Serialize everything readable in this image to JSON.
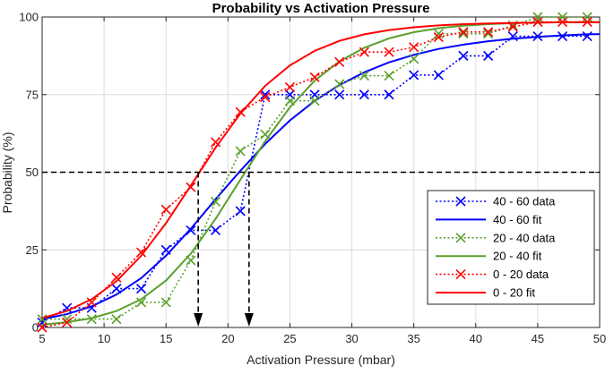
{
  "chart_data": {
    "type": "line",
    "title": "Probability vs Activation Pressure",
    "xlabel": "Activation Pressure (mbar)",
    "ylabel": "Probability (%)",
    "xlim": [
      5,
      50
    ],
    "ylim": [
      0,
      100
    ],
    "xticks": [
      5,
      10,
      15,
      20,
      25,
      30,
      35,
      40,
      45,
      50
    ],
    "yticks": [
      0,
      25,
      50,
      75,
      100
    ],
    "grid": true,
    "legend_position": "bottom-right",
    "reference_line": {
      "y": 50
    },
    "arrows": [
      {
        "x": 17.6,
        "from_y": 50,
        "to_y": 0
      },
      {
        "x": 21.7,
        "from_y": 50,
        "to_y": 0
      }
    ],
    "series": [
      {
        "name": "40 - 60 data",
        "style": "dotted-marker",
        "color": "#0000ff",
        "x": [
          5,
          7,
          9,
          11,
          13,
          15,
          17,
          19,
          21,
          23,
          25,
          27,
          29,
          31,
          33,
          35,
          37,
          39,
          41,
          43,
          45,
          47,
          49
        ],
        "y": [
          1.6,
          6.3,
          6.3,
          12.5,
          12.5,
          25,
          31.3,
          31.3,
          37.5,
          75,
          75,
          75,
          75,
          75,
          75,
          81.3,
          81.3,
          87.5,
          87.5,
          93.8,
          93.8,
          93.8,
          93.8
        ]
      },
      {
        "name": "40 - 60 fit",
        "style": "solid",
        "color": "#0000ff",
        "x": [
          5,
          7,
          9,
          11,
          13,
          15,
          17,
          19,
          21,
          23,
          25,
          27,
          29,
          31,
          33,
          35,
          37,
          39,
          41,
          43,
          45,
          47,
          49,
          50
        ],
        "y": [
          2.7,
          4.3,
          6.8,
          10.6,
          15.9,
          23.1,
          31.8,
          41.3,
          50.5,
          59.1,
          66.7,
          73,
          78.1,
          82.2,
          85.4,
          87.8,
          89.7,
          91.1,
          92.2,
          93,
          93.6,
          94.1,
          94.4,
          94.5
        ]
      },
      {
        "name": "20 - 40 data",
        "style": "dotted-marker",
        "color": "#5aa02c",
        "x": [
          5,
          7,
          9,
          11,
          13,
          15,
          17,
          19,
          21,
          23,
          25,
          27,
          29,
          31,
          33,
          35,
          37,
          39,
          41,
          43,
          45,
          47,
          49
        ],
        "y": [
          2.7,
          2.7,
          2.7,
          2.7,
          8.1,
          8.1,
          21.6,
          40.5,
          56.8,
          62.2,
          73,
          73,
          78.4,
          81.1,
          81.1,
          86.5,
          94.6,
          94.6,
          94.6,
          97.3,
          100,
          100,
          100
        ]
      },
      {
        "name": "20 - 40 fit",
        "style": "solid",
        "color": "#5aa02c",
        "x": [
          5,
          7,
          9,
          11,
          13,
          15,
          17,
          19,
          21,
          23,
          25,
          27,
          29,
          31,
          33,
          35,
          37,
          39,
          41,
          43,
          45,
          47,
          49,
          50
        ],
        "y": [
          0.9,
          1.7,
          3,
          5.3,
          9.1,
          15.1,
          23.8,
          35,
          47.6,
          60,
          70.9,
          79.5,
          85.7,
          90.1,
          93.1,
          95.1,
          96.4,
          97.2,
          97.7,
          98,
          98.2,
          98.3,
          98.4,
          98.4
        ]
      },
      {
        "name": "0 - 20 data",
        "style": "dotted-marker",
        "color": "#ff0000",
        "x": [
          5,
          7,
          9,
          11,
          13,
          15,
          17,
          19,
          21,
          23,
          25,
          27,
          29,
          31,
          33,
          35,
          37,
          39,
          41,
          43,
          45,
          47,
          49
        ],
        "y": [
          0,
          1.6,
          8.1,
          16.1,
          24.2,
          38,
          45.2,
          59.7,
          69.4,
          74.2,
          77.4,
          80.6,
          85.5,
          88.7,
          88.7,
          90.3,
          93.5,
          95.2,
          95.2,
          96.8,
          98.4,
          98.4,
          98.4
        ]
      },
      {
        "name": "0 - 20 fit",
        "style": "solid",
        "color": "#ff0000",
        "x": [
          5,
          7,
          9,
          11,
          13,
          15,
          17,
          19,
          21,
          23,
          25,
          27,
          29,
          31,
          33,
          35,
          37,
          39,
          41,
          43,
          45,
          47,
          49,
          50
        ],
        "y": [
          3,
          5.3,
          9.1,
          14.9,
          23.1,
          33.6,
          45.7,
          57.9,
          68.9,
          77.8,
          84.4,
          89.1,
          92.3,
          94.4,
          95.8,
          96.7,
          97.3,
          97.7,
          97.9,
          98.1,
          98.2,
          98.3,
          98.3,
          98.3
        ]
      }
    ]
  }
}
